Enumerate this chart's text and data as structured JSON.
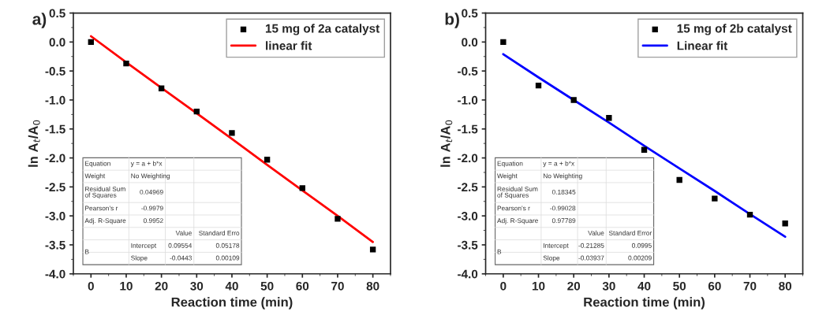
{
  "chart_data": [
    {
      "type": "scatter",
      "title": "a)",
      "xlabel": "Reaction time (min)",
      "ylabel": "ln A$_{t}$/A$_{0}$",
      "x": [
        0,
        10,
        20,
        30,
        40,
        50,
        60,
        70,
        80
      ],
      "xlim": [
        -5,
        85
      ],
      "xticks": [
        0,
        10,
        20,
        30,
        40,
        50,
        60,
        70,
        80
      ],
      "ylim": [
        -4.0,
        0.5
      ],
      "yticks": [
        {
          "value": 0.5,
          "label": "0.5"
        },
        {
          "value": 0.0,
          "label": "0.0"
        },
        {
          "value": -0.5,
          "label": "-0.5"
        },
        {
          "value": -1.0,
          "label": "-1.0"
        },
        {
          "value": -1.5,
          "label": "-1.5"
        },
        {
          "value": -2.0,
          "label": "-2.0"
        },
        {
          "value": -2.5,
          "label": "-2.5"
        },
        {
          "value": -3.0,
          "label": "-3.0"
        },
        {
          "value": -3.5,
          "label": "-3.5"
        },
        {
          "value": -4.0,
          "label": "-4.0"
        }
      ],
      "legend": "top right",
      "grid": false,
      "series": [
        {
          "name": "15 mg of 2a catalyst",
          "marker": "square",
          "color": "#000000",
          "values": [
            0.0,
            -0.37,
            -0.8,
            -1.2,
            -1.57,
            -2.03,
            -2.52,
            -3.05,
            -3.58
          ]
        },
        {
          "name": "linear fit",
          "type": "line",
          "color": "#ff0000",
          "values": [
            0.1,
            -0.35,
            -0.79,
            -1.23,
            -1.67,
            -2.12,
            -2.56,
            -3.0,
            -3.45
          ]
        }
      ],
      "annotations": [
        "Equation",
        "y = a + b*x",
        "Weight",
        "No Weighting",
        "Residual Sum\nof Squares",
        "0.04969",
        "Pearson's r",
        "-0.9979",
        "Adj. R-Square",
        "0.9952",
        "Value",
        "Standard Erro",
        "B",
        "Intercept",
        "0.09554",
        "0.05178",
        "Slope",
        "-0.0443",
        "0.00109"
      ]
    },
    {
      "type": "scatter",
      "title": "b)",
      "xlabel": "Reaction time (min)",
      "ylabel": "ln A$_{t}$/A$_{0}$",
      "x": [
        0,
        10,
        20,
        30,
        40,
        50,
        60,
        70,
        80
      ],
      "xlim": [
        -5,
        85
      ],
      "xticks": [
        0,
        10,
        20,
        30,
        40,
        50,
        60,
        70,
        80
      ],
      "ylim": [
        -4.0,
        0.5
      ],
      "yticks": [
        {
          "value": 0.5,
          "label": "0.5"
        },
        {
          "value": 0.0,
          "label": "0.0"
        },
        {
          "value": -0.5,
          "label": "-0.5"
        },
        {
          "value": -1.0,
          "label": "-1.0"
        },
        {
          "value": -1.5,
          "label": "-1.5"
        },
        {
          "value": -2.0,
          "label": "-2.0"
        },
        {
          "value": -2.5,
          "label": "-2.5"
        },
        {
          "value": -3.0,
          "label": "-3.0"
        },
        {
          "value": -3.5,
          "label": "-3.5"
        },
        {
          "value": -4.0,
          "label": "-4.0"
        }
      ],
      "legend": "top right",
      "grid": false,
      "series": [
        {
          "name": "15 mg of 2b catalyst",
          "marker": "square",
          "color": "#000000",
          "values": [
            0.0,
            -0.75,
            -1.0,
            -1.31,
            -1.86,
            -2.38,
            -2.7,
            -2.98,
            -3.13
          ]
        },
        {
          "name": "Linear fit",
          "type": "line",
          "color": "#0000ff",
          "values": [
            -0.21,
            -0.61,
            -1.0,
            -1.39,
            -1.79,
            -2.18,
            -2.57,
            -2.97,
            -3.36
          ]
        }
      ],
      "annotations": [
        "Equation",
        "y = a + b*x",
        "Weight",
        "No Weighting",
        "Residual Sum\nof Squares",
        "0.18345",
        "Pearson's r",
        "-0.99028",
        "Adj. R-Square",
        "0.97789",
        "Value",
        "Standard Error",
        "B",
        "Intercept",
        "-0.21285",
        "0.0995",
        "Slope",
        "-0.03937",
        "0.00209"
      ]
    }
  ]
}
